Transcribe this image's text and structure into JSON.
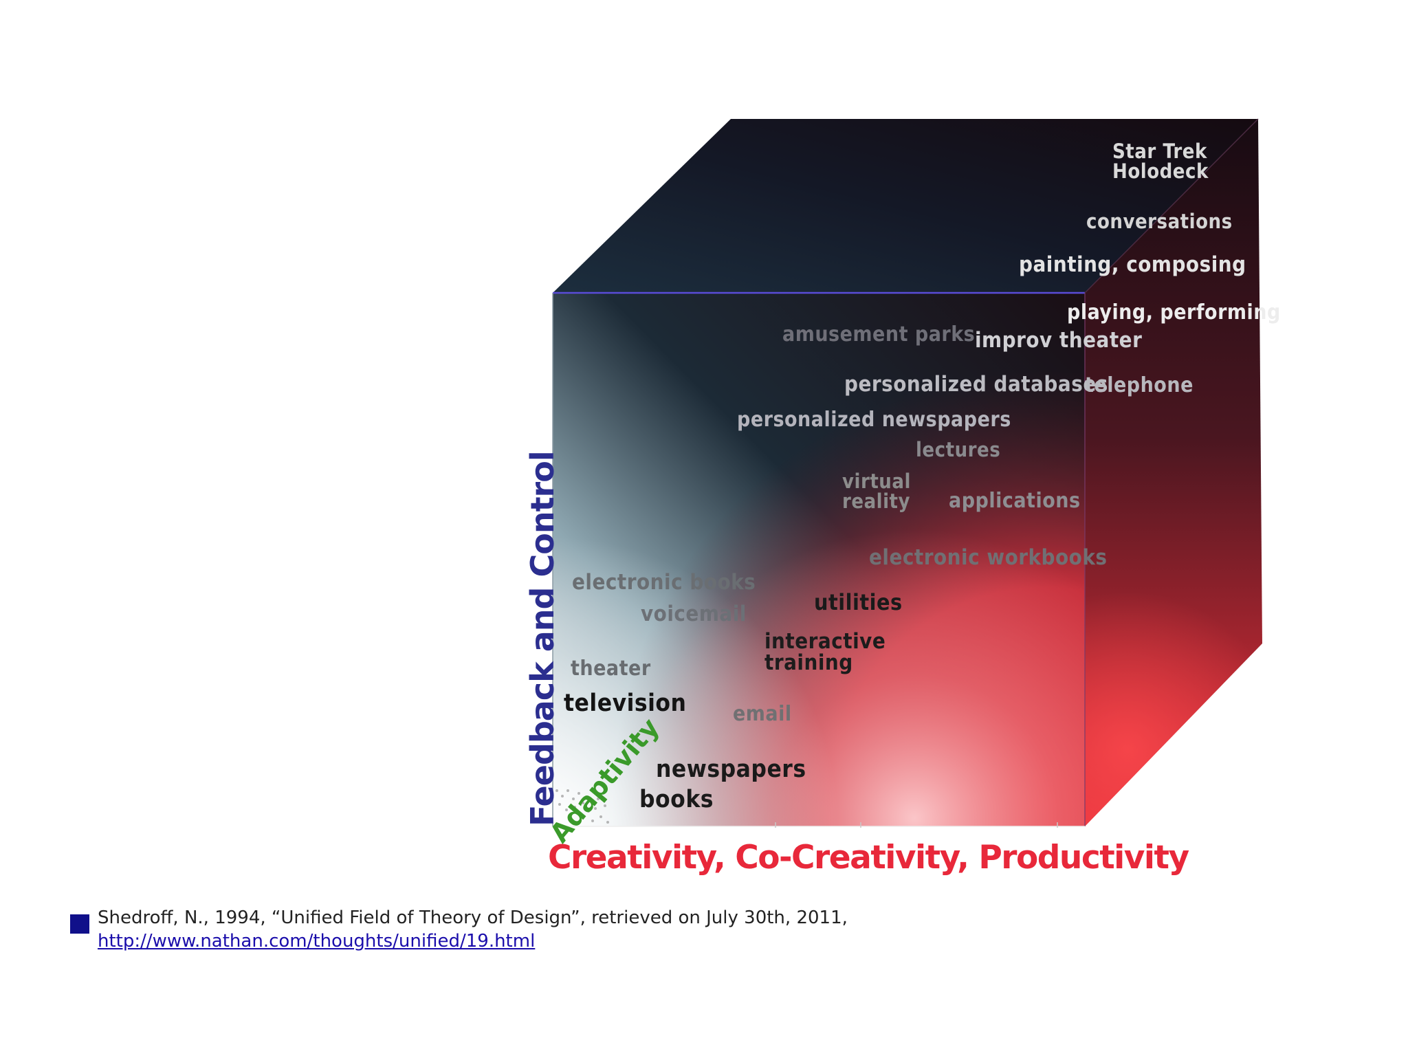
{
  "diagram": {
    "axes": {
      "vertical": "Feedback and Control",
      "horizontal": "Creativity, Co-Creativity, Productivity",
      "depth": "Adaptivity"
    },
    "colors": {
      "vertical_axis": "#2b2e8f",
      "horizontal_axis": "#e8283a",
      "depth_axis": "#3a9a2a"
    },
    "labels": [
      {
        "key": "star-trek-holodeck",
        "lines": [
          "Star Trek",
          "Holodeck"
        ],
        "color": "#d9d9d9"
      },
      {
        "key": "conversations",
        "lines": [
          "conversations"
        ],
        "color": "#d4d4d4"
      },
      {
        "key": "painting-composing",
        "lines": [
          "painting, composing"
        ],
        "color": "#e4e4e4"
      },
      {
        "key": "playing-performing",
        "lines": [
          "playing, performing"
        ],
        "color": "#ededed"
      },
      {
        "key": "amusement-parks",
        "lines": [
          "amusement parks"
        ],
        "color": "#6f6f78"
      },
      {
        "key": "improv-theater",
        "lines": [
          "improv theater"
        ],
        "color": "#d0d0d4"
      },
      {
        "key": "personalized-databases",
        "lines": [
          "personalized databases"
        ],
        "color": "#bcbcc2"
      },
      {
        "key": "telephone",
        "lines": [
          "telephone"
        ],
        "color": "#b8b8be"
      },
      {
        "key": "personalized-newspapers",
        "lines": [
          "personalized newspapers"
        ],
        "color": "#b4b4bc"
      },
      {
        "key": "lectures",
        "lines": [
          "lectures"
        ],
        "color": "#8a8a8e"
      },
      {
        "key": "virtual-reality",
        "lines": [
          "virtual",
          "reality"
        ],
        "color": "#8c8c8c"
      },
      {
        "key": "applications",
        "lines": [
          "applications"
        ],
        "color": "#8e8e92"
      },
      {
        "key": "electronic-workbooks",
        "lines": [
          "electronic workbooks"
        ],
        "color": "#707074"
      },
      {
        "key": "electronic-books",
        "lines": [
          "electronic books"
        ],
        "color": "#6a6e72"
      },
      {
        "key": "utilities",
        "lines": [
          "utilities"
        ],
        "color": "#1a1a1a"
      },
      {
        "key": "voicemail",
        "lines": [
          "voicemail"
        ],
        "color": "#6c7076"
      },
      {
        "key": "interactive-training",
        "lines": [
          "interactive",
          "training"
        ],
        "color": "#1c1c1c"
      },
      {
        "key": "theater",
        "lines": [
          "theater"
        ],
        "color": "#686c70"
      },
      {
        "key": "television",
        "lines": [
          "television"
        ],
        "color": "#141414"
      },
      {
        "key": "email",
        "lines": [
          "email"
        ],
        "color": "#707072"
      },
      {
        "key": "newspapers",
        "lines": [
          "newspapers"
        ],
        "color": "#1a1a1a"
      },
      {
        "key": "books",
        "lines": [
          "books"
        ],
        "color": "#1a1a1a"
      }
    ]
  },
  "reference": {
    "text": "Shedroff, N., 1994, “Unified Field of Theory of Design”, retrieved on July 30th, 2011,",
    "link": "http://www.nathan.com/thoughts/unified/19.html"
  }
}
